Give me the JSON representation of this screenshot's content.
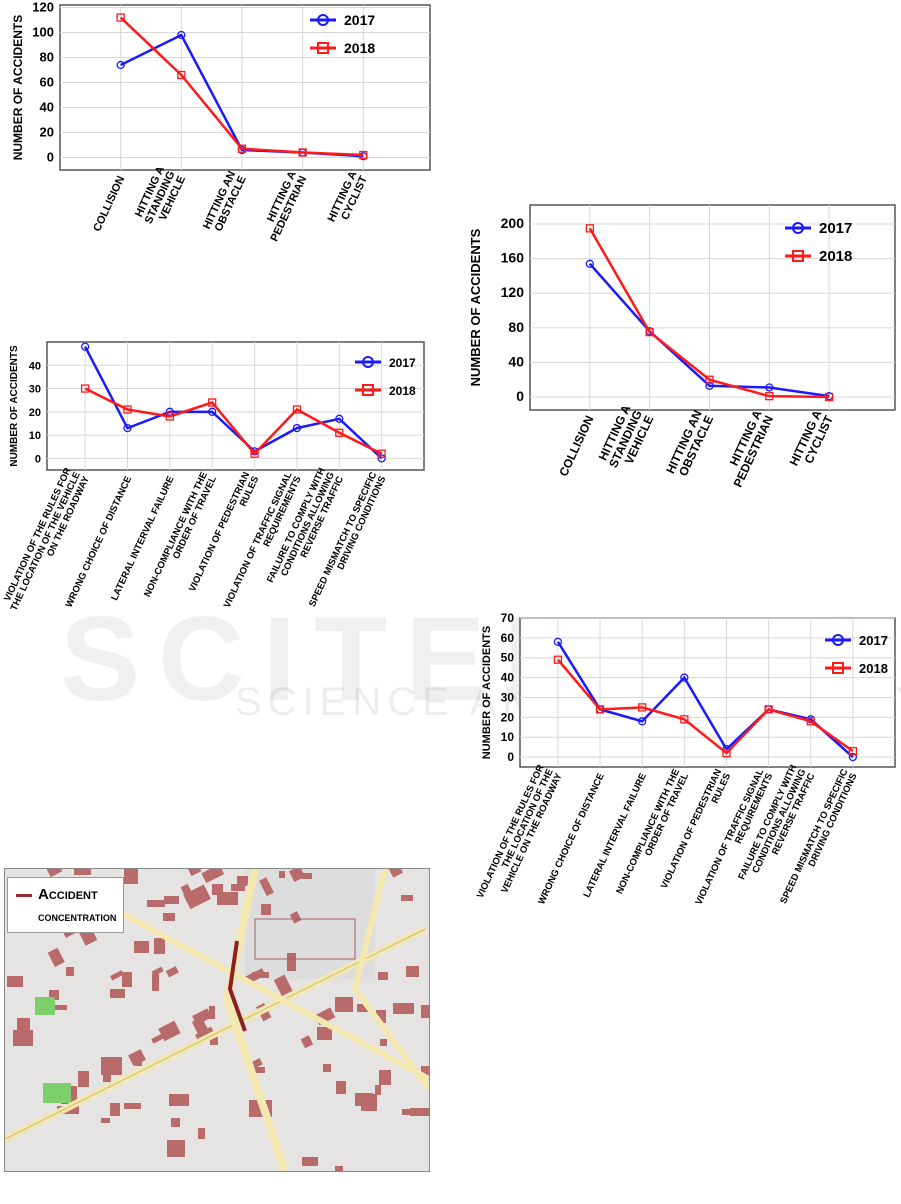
{
  "watermark": {
    "main": "SCITEPRESS",
    "sub": "SCIENCE AND TECHNOLOGY PUBLICATIONS"
  },
  "colors": {
    "s2017": "#1a1aff",
    "s2018": "#ff1a1a",
    "grid": "#d8d8d8"
  },
  "chart_data": [
    {
      "type": "line",
      "ylabel": "Number of accidents",
      "yticks": [
        0,
        20,
        40,
        60,
        80,
        100,
        120
      ],
      "ylim": [
        -10,
        122
      ],
      "categories": [
        [
          "Collision"
        ],
        [
          "Hitting a",
          "standing",
          "vehicle"
        ],
        [
          "Hitting an",
          "obstacle"
        ],
        [
          "Hitting a",
          "pedestrian"
        ],
        [
          "Hitting a",
          "cyclist"
        ]
      ],
      "series": [
        {
          "name": "2017",
          "values": [
            74,
            98,
            6,
            4,
            1
          ]
        },
        {
          "name": "2018",
          "values": [
            112,
            66,
            7,
            4,
            2
          ]
        }
      ],
      "legend": "top-right",
      "grid": true
    },
    {
      "type": "line",
      "ylabel": "Number of accidents",
      "yticks": [
        0,
        40,
        80,
        120,
        160,
        200
      ],
      "ylim": [
        -15,
        222
      ],
      "categories": [
        [
          "Collision"
        ],
        [
          "Hitting a",
          "standing",
          "vehicle"
        ],
        [
          "Hitting an",
          "obstacle"
        ],
        [
          "Hitting a",
          "pedestrian"
        ],
        [
          "Hitting a",
          "cyclist"
        ]
      ],
      "series": [
        {
          "name": "2017",
          "values": [
            154,
            76,
            13,
            11,
            1
          ]
        },
        {
          "name": "2018",
          "values": [
            195,
            75,
            20,
            1,
            0
          ]
        }
      ],
      "legend": "top-right",
      "grid": true
    },
    {
      "type": "line",
      "ylabel": "Number of accidents",
      "yticks": [
        0,
        10,
        20,
        30,
        40
      ],
      "ylim": [
        -5,
        50
      ],
      "categories": [
        [
          "Violation of the rules for",
          "the location of the vehicle",
          "on the roadway"
        ],
        [
          "Wrong choice of distance"
        ],
        [
          "Lateral interval failure"
        ],
        [
          "Non-compliance with the",
          "order of travel"
        ],
        [
          "Violation of pedestrian",
          "rules"
        ],
        [
          "Violation of traffic signal",
          "requirements"
        ],
        [
          "Failure to comply with",
          "conditions allowing",
          "reverse traffic"
        ],
        [
          "Speed mismatch to specific",
          "driving conditions"
        ]
      ],
      "series": [
        {
          "name": "2017",
          "values": [
            48,
            13,
            20,
            20,
            3,
            13,
            17,
            0
          ]
        },
        {
          "name": "2018",
          "values": [
            30,
            21,
            18,
            24,
            2,
            21,
            11,
            2
          ]
        }
      ],
      "legend": "top-right",
      "grid": true
    },
    {
      "type": "line",
      "ylabel": "Number of accidents",
      "yticks": [
        0,
        10,
        20,
        30,
        40,
        50,
        60,
        70
      ],
      "ylim": [
        -5,
        70
      ],
      "categories": [
        [
          "Violation of the rules for",
          "the location of the",
          "vehicle on the roadway"
        ],
        [
          "Wrong choice of distance"
        ],
        [
          "Lateral interval failure"
        ],
        [
          "Non-compliance with the",
          "order of travel"
        ],
        [
          "Violation of pedestrian",
          "rules"
        ],
        [
          "Violation of traffic signal",
          "requirements"
        ],
        [
          "Failure to comply with",
          "conditions allowing",
          "reverse traffic"
        ],
        [
          "Speed mismatch to specific",
          "driving conditions"
        ]
      ],
      "series": [
        {
          "name": "2017",
          "values": [
            58,
            24,
            18,
            40,
            4,
            24,
            19,
            0
          ]
        },
        {
          "name": "2018",
          "values": [
            49,
            24,
            25,
            19,
            2,
            24,
            18,
            3
          ]
        }
      ],
      "legend": "top-right",
      "grid": true
    }
  ],
  "map": {
    "legend_line1": "Accident",
    "legend_line2": "concentration"
  }
}
